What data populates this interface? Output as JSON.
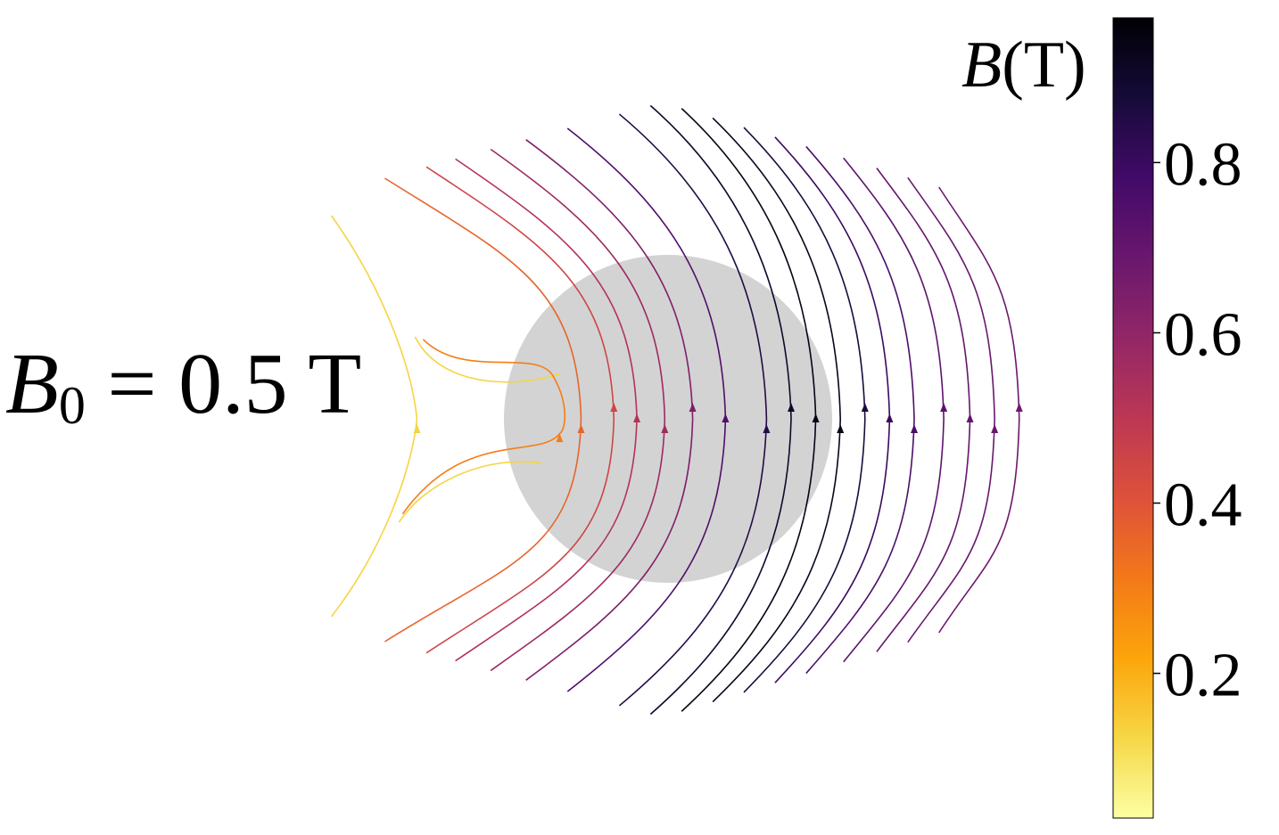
{
  "annotation": {
    "symbol": "B",
    "subscript": "0",
    "text": " = 0.5 T"
  },
  "colorbar": {
    "symbol": "B",
    "unit": "(T)",
    "ticks": [
      "0.2",
      "0.4",
      "0.6",
      "0.8"
    ],
    "tick_values": [
      0.2,
      0.4,
      0.6,
      0.8
    ],
    "range": [
      0.03,
      0.97
    ],
    "colormap": "inferno",
    "stops": [
      "#fcffa4",
      "#f6d746",
      "#fca50a",
      "#f37819",
      "#dd513a",
      "#bc3754",
      "#932667",
      "#6a176e",
      "#420a68",
      "#160b39",
      "#000004"
    ]
  },
  "chart_data": {
    "type": "streamplot",
    "title": "",
    "xlabel": "",
    "ylabel": "",
    "axes_visible": false,
    "obstacle": {
      "shape": "circle",
      "center": [
        0,
        0
      ],
      "radius": 1.0,
      "color": "#d3d3d3"
    },
    "arrow_direction": "up",
    "streamlines": [
      {
        "apex_x": -1.53,
        "B": 0.13,
        "type": "saddle"
      },
      {
        "apex_x": -0.65,
        "B": 0.3,
        "type": "return_loop",
        "entry_y": 0.45,
        "exit_y": -0.3
      },
      {
        "apex_x": -0.53,
        "B": 0.36
      },
      {
        "apex_x": -0.33,
        "B": 0.45
      },
      {
        "apex_x": -0.19,
        "B": 0.52
      },
      {
        "apex_x": -0.02,
        "B": 0.57
      },
      {
        "apex_x": 0.15,
        "B": 0.64
      },
      {
        "apex_x": 0.35,
        "B": 0.75
      },
      {
        "apex_x": 0.6,
        "B": 0.85
      },
      {
        "apex_x": 0.75,
        "B": 0.9
      },
      {
        "apex_x": 0.9,
        "B": 0.94
      },
      {
        "apex_x": 1.05,
        "B": 0.93
      },
      {
        "apex_x": 1.2,
        "B": 0.87
      },
      {
        "apex_x": 1.35,
        "B": 0.8
      },
      {
        "apex_x": 1.5,
        "B": 0.76
      },
      {
        "apex_x": 1.68,
        "B": 0.72
      },
      {
        "apex_x": 1.84,
        "B": 0.7
      },
      {
        "apex_x": 1.99,
        "B": 0.69
      },
      {
        "apex_x": 2.14,
        "B": 0.68
      }
    ]
  }
}
